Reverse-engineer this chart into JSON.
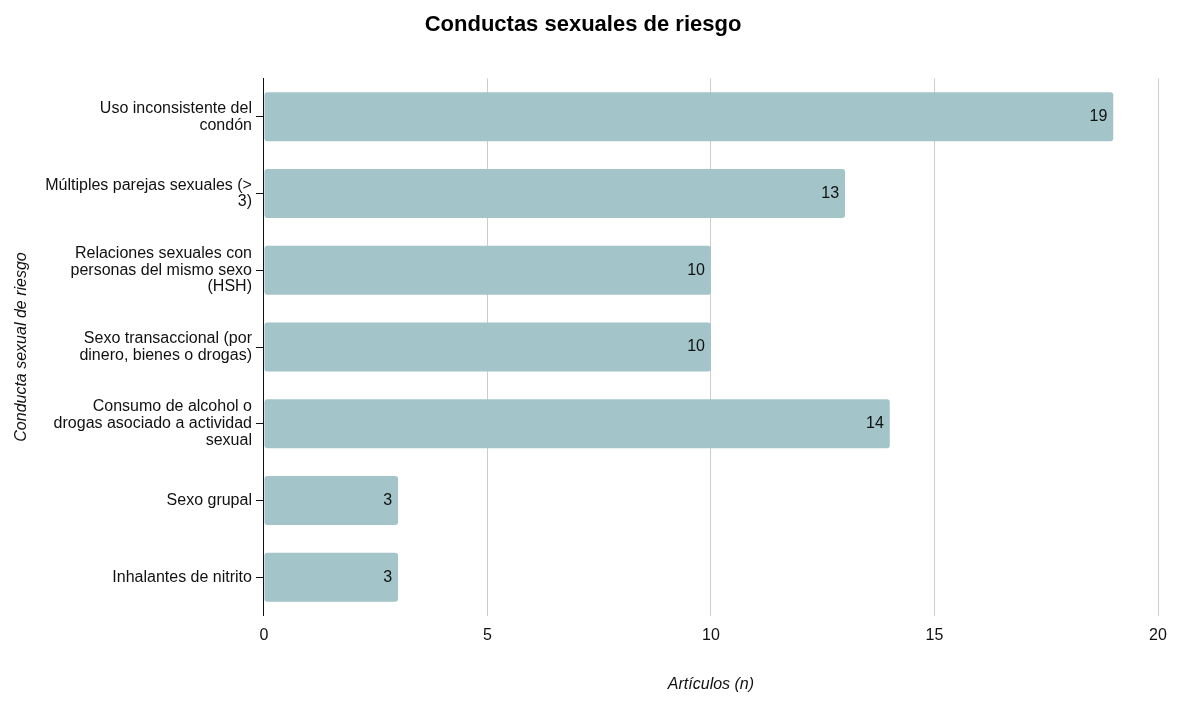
{
  "chart_data": {
    "type": "bar",
    "orientation": "horizontal",
    "title": "Conductas sexuales de riesgo",
    "xlabel": "Artículos (n)",
    "ylabel": "Conducta sexual de riesgo",
    "categories": [
      "Uso inconsistente del condón",
      "Múltiples parejas sexuales (> 3)",
      "Relaciones sexuales con personas del mismo sexo (HSH)",
      "Sexo transaccional (por dinero, bienes o drogas)",
      "Consumo de alcohol o drogas asociado a actividad sexual",
      "Sexo grupal",
      "Inhalantes de nitrito"
    ],
    "values": [
      19,
      13,
      10,
      10,
      14,
      3,
      3
    ],
    "color": "#a3c4c8",
    "xlim": [
      0,
      20
    ],
    "xticks": [
      0,
      5,
      10,
      15,
      20
    ],
    "grid": "x",
    "data_labels": true,
    "legend": false
  }
}
